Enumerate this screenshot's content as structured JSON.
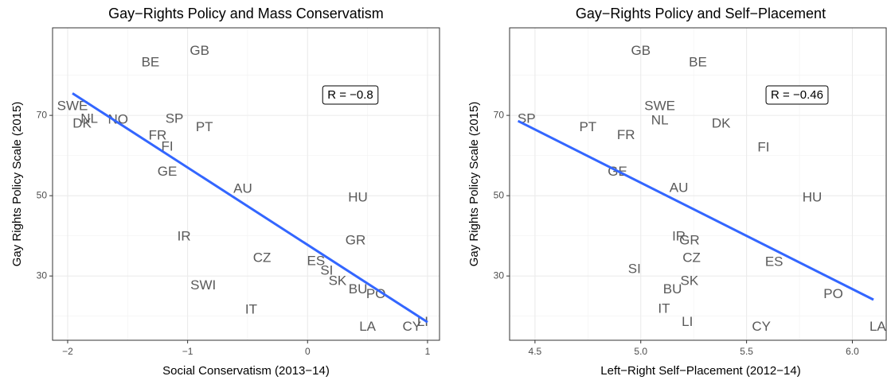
{
  "chart_data": [
    {
      "type": "scatter",
      "title": "Gay−Rights Policy and Mass Conservatism",
      "x_label": "Social Conservatism (2013−14)",
      "y_label": "Gay Rights Policy Scale (2015)",
      "annotation": "R = −0.8",
      "color": "#3366ff",
      "grid": true,
      "xlim": [
        -2.126,
        1.1
      ],
      "ylim": [
        14.0,
        91.8
      ],
      "xticks": [
        {
          "value": -2,
          "label": "−2"
        },
        {
          "value": -1,
          "label": "−1"
        },
        0,
        1
      ],
      "yticks": [
        30,
        50,
        70
      ],
      "labels": [
        "GB",
        "BE",
        "SWE",
        "NL",
        "DK",
        "NO",
        "SP",
        "PT",
        "FR",
        "FI",
        "GE",
        "AU",
        "HU",
        "IR",
        "GR",
        "CZ",
        "ES",
        "SI",
        "SK",
        "BU",
        "PO",
        "SWI",
        "IT",
        "LA",
        "CY",
        "LI"
      ],
      "x": [
        -0.9,
        -1.31,
        -1.96,
        -1.82,
        -1.88,
        -1.58,
        -1.11,
        -0.86,
        -1.25,
        -1.17,
        -1.17,
        -0.54,
        0.42,
        -1.03,
        0.4,
        -0.38,
        0.07,
        0.16,
        0.25,
        0.42,
        0.57,
        -0.87,
        -0.47,
        0.5,
        0.87,
        0.96
      ],
      "y": [
        86.0,
        83.1,
        72.2,
        69.0,
        67.8,
        68.8,
        69.0,
        67.0,
        64.9,
        62.1,
        55.9,
        51.6,
        49.4,
        39.7,
        38.7,
        34.4,
        33.6,
        31.2,
        28.6,
        26.6,
        25.4,
        27.6,
        21.5,
        17.3,
        17.3,
        18.5
      ],
      "trend_line": {
        "x": [
          -1.96,
          1.0
        ],
        "y": [
          75.5,
          18.5
        ]
      }
    },
    {
      "type": "scatter",
      "title": "Gay−Rights Policy and Self−Placement",
      "x_label": "Left−Right Self−Placement (2012−14)",
      "y_label": "Gay Rights Policy Scale (2015)",
      "annotation": "R = −0.46",
      "color": "#3366ff",
      "grid": true,
      "xlim": [
        4.38,
        6.16
      ],
      "ylim": [
        14.0,
        91.8
      ],
      "xticks": [
        4.5,
        {
          "value": 5.0,
          "label": "5.0"
        },
        5.5,
        {
          "value": 6.0,
          "label": "6.0"
        }
      ],
      "yticks": [
        30,
        50,
        70
      ],
      "labels": [
        "GB",
        "BE",
        "SWE",
        "NL",
        "DK",
        "SP",
        "PT",
        "FR",
        "FI",
        "GE",
        "AU",
        "HU",
        "IR",
        "GR",
        "CZ",
        "ES",
        "SI",
        "SK",
        "BU",
        "PO",
        "IT",
        "LI",
        "CY",
        "LA"
      ],
      "x": [
        5.0,
        5.27,
        5.09,
        5.09,
        5.38,
        4.46,
        4.75,
        4.93,
        5.58,
        4.89,
        5.18,
        5.81,
        5.18,
        5.23,
        5.24,
        5.63,
        4.97,
        5.23,
        5.15,
        5.91,
        5.11,
        5.22,
        5.57,
        6.12
      ],
      "y": [
        86.0,
        83.1,
        72.2,
        68.6,
        67.8,
        69.0,
        67.0,
        65.0,
        61.9,
        55.9,
        51.8,
        49.4,
        39.7,
        38.7,
        34.4,
        33.4,
        31.6,
        28.6,
        26.6,
        25.4,
        21.7,
        18.5,
        17.3,
        17.3
      ],
      "trend_line": {
        "x": [
          4.42,
          6.1
        ],
        "y": [
          68.6,
          24.1
        ]
      }
    }
  ]
}
